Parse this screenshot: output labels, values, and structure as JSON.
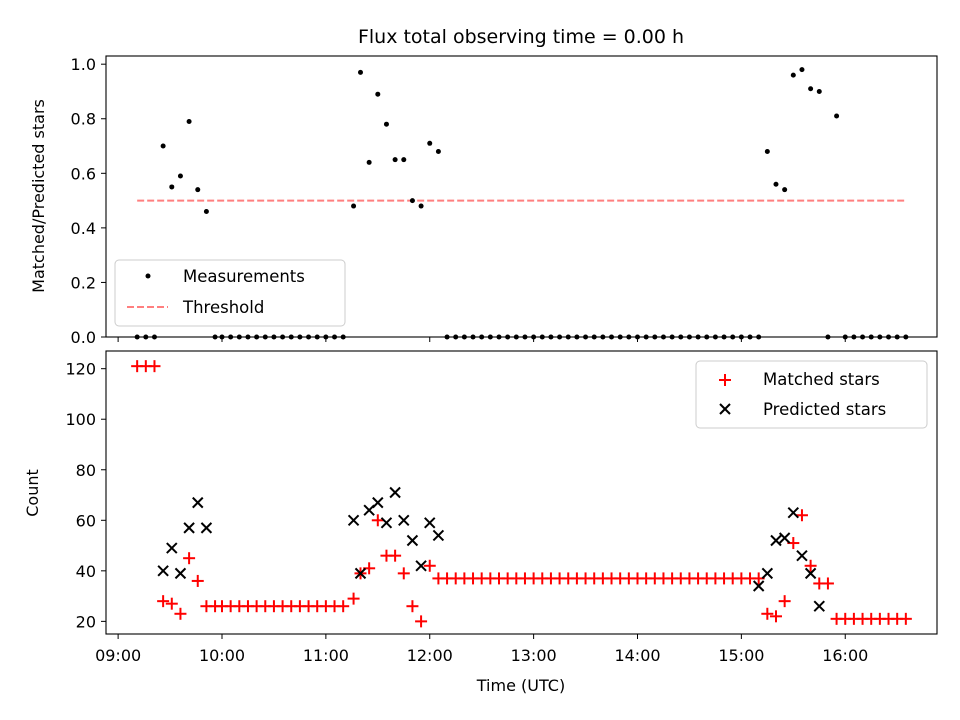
{
  "figure": {
    "title": "Flux total observing time = 0.00 h",
    "xlabel": "Time (UTC)"
  },
  "chart_data": [
    {
      "type": "scatter",
      "title": "Flux total observing time = 0.00 h",
      "xlabel": "",
      "ylabel": "Matched/Predicted stars",
      "ylim": [
        0,
        1.03
      ],
      "yticks": [
        "0.0",
        "0.2",
        "0.4",
        "0.6",
        "0.8",
        "1.0"
      ],
      "ytick_values": [
        0,
        0.2,
        0.4,
        0.6,
        0.8,
        1.0
      ],
      "xlim": [
        "08:53",
        "16:53"
      ],
      "legend_position": "lower-left",
      "series": [
        {
          "name": "Measurements",
          "marker": "dot",
          "color": "#000000",
          "x": [
            "09:11",
            "09:16",
            "09:21",
            "09:26",
            "09:31",
            "09:36",
            "09:41",
            "09:46",
            "09:51",
            "09:56",
            "10:00",
            "10:05",
            "10:10",
            "10:15",
            "10:20",
            "10:25",
            "10:30",
            "10:35",
            "10:40",
            "10:45",
            "10:50",
            "10:55",
            "11:00",
            "11:05",
            "11:10",
            "11:16",
            "11:20",
            "11:25",
            "11:30",
            "11:35",
            "11:40",
            "11:45",
            "11:50",
            "11:55",
            "12:00",
            "12:05",
            "12:10",
            "12:15",
            "12:20",
            "12:25",
            "12:30",
            "12:35",
            "12:40",
            "12:45",
            "12:50",
            "12:55",
            "13:00",
            "13:05",
            "13:10",
            "13:15",
            "13:20",
            "13:25",
            "13:30",
            "13:35",
            "13:40",
            "13:45",
            "13:50",
            "13:55",
            "14:00",
            "14:05",
            "14:10",
            "14:15",
            "14:20",
            "14:25",
            "14:30",
            "14:35",
            "14:40",
            "14:45",
            "14:50",
            "14:55",
            "15:00",
            "15:05",
            "15:10",
            "15:15",
            "15:20",
            "15:25",
            "15:30",
            "15:35",
            "15:40",
            "15:45",
            "15:50",
            "15:55",
            "16:00",
            "16:05",
            "16:10",
            "16:15",
            "16:20",
            "16:25",
            "16:30",
            "16:35"
          ],
          "y": [
            0,
            0,
            0,
            0.7,
            0.55,
            0.59,
            0.79,
            0.54,
            0.46,
            0,
            0,
            0,
            0,
            0,
            0,
            0,
            0,
            0,
            0,
            0,
            0,
            0,
            0,
            0,
            0,
            0.48,
            0.97,
            0.64,
            0.89,
            0.78,
            0.65,
            0.65,
            0.5,
            0.48,
            0.71,
            0.68,
            0,
            0,
            0,
            0,
            0,
            0,
            0,
            0,
            0,
            0,
            0,
            0,
            0,
            0,
            0,
            0,
            0,
            0,
            0,
            0,
            0,
            0,
            0,
            0,
            0,
            0,
            0,
            0,
            0,
            0,
            0,
            0,
            0,
            0,
            0,
            0,
            0,
            0.68,
            0.56,
            0.54,
            0.96,
            0.98,
            0.91,
            0.9,
            0,
            0.81,
            0,
            0,
            0,
            0,
            0,
            0,
            0,
            0
          ]
        },
        {
          "name": "Threshold",
          "style": "dashed",
          "color": "#ff7f7f",
          "x": [
            "09:11",
            "16:35"
          ],
          "y": [
            0.5,
            0.5
          ]
        }
      ]
    },
    {
      "type": "scatter",
      "xlabel": "Time (UTC)",
      "ylabel": "Count",
      "ylim": [
        15,
        127
      ],
      "yticks": [
        "20",
        "40",
        "60",
        "80",
        "100",
        "120"
      ],
      "ytick_values": [
        20,
        40,
        60,
        80,
        100,
        120
      ],
      "xlim": [
        "08:53",
        "16:53"
      ],
      "xticks": [
        "09:00",
        "10:00",
        "11:00",
        "12:00",
        "13:00",
        "14:00",
        "15:00",
        "16:00"
      ],
      "legend_position": "upper-right",
      "series": [
        {
          "name": "Matched stars",
          "marker": "plus",
          "color": "#ff0000",
          "x": [
            "09:11",
            "09:16",
            "09:21",
            "09:26",
            "09:31",
            "09:36",
            "09:41",
            "09:46",
            "09:51",
            "09:56",
            "10:00",
            "10:05",
            "10:10",
            "10:15",
            "10:20",
            "10:25",
            "10:30",
            "10:35",
            "10:40",
            "10:45",
            "10:50",
            "10:55",
            "11:00",
            "11:05",
            "11:10",
            "11:16",
            "11:20",
            "11:25",
            "11:30",
            "11:35",
            "11:40",
            "11:45",
            "11:50",
            "11:55",
            "12:00",
            "12:05",
            "12:10",
            "12:15",
            "12:20",
            "12:25",
            "12:30",
            "12:35",
            "12:40",
            "12:45",
            "12:50",
            "12:55",
            "13:00",
            "13:05",
            "13:10",
            "13:15",
            "13:20",
            "13:25",
            "13:30",
            "13:35",
            "13:40",
            "13:45",
            "13:50",
            "13:55",
            "14:00",
            "14:05",
            "14:10",
            "14:15",
            "14:20",
            "14:25",
            "14:30",
            "14:35",
            "14:40",
            "14:45",
            "14:50",
            "14:55",
            "15:00",
            "15:05",
            "15:10",
            "15:15",
            "15:20",
            "15:25",
            "15:30",
            "15:35",
            "15:40",
            "15:45",
            "15:50",
            "15:55",
            "16:00",
            "16:05",
            "16:10",
            "16:15",
            "16:20",
            "16:25",
            "16:30",
            "16:35"
          ],
          "y": [
            121,
            121,
            121,
            28,
            27,
            23,
            45,
            36,
            26,
            26,
            26,
            26,
            26,
            26,
            26,
            26,
            26,
            26,
            26,
            26,
            26,
            26,
            26,
            26,
            26,
            29,
            39,
            41,
            60,
            46,
            46,
            39,
            26,
            20,
            42,
            37,
            37,
            37,
            37,
            37,
            37,
            37,
            37,
            37,
            37,
            37,
            37,
            37,
            37,
            37,
            37,
            37,
            37,
            37,
            37,
            37,
            37,
            37,
            37,
            37,
            37,
            37,
            37,
            37,
            37,
            37,
            37,
            37,
            37,
            37,
            37,
            37,
            37,
            23,
            22,
            28,
            51,
            62,
            42,
            35,
            35,
            21,
            21,
            21,
            21,
            21,
            21,
            21,
            21,
            21
          ]
        },
        {
          "name": "Predicted stars",
          "marker": "x",
          "color": "#000000",
          "x": [
            "09:26",
            "09:31",
            "09:36",
            "09:41",
            "09:46",
            "09:51",
            "11:16",
            "11:20",
            "11:25",
            "11:30",
            "11:35",
            "11:40",
            "11:45",
            "11:50",
            "11:55",
            "12:00",
            "12:05",
            "15:10",
            "15:15",
            "15:20",
            "15:25",
            "15:30",
            "15:35",
            "15:40",
            "15:45"
          ],
          "y": [
            40,
            49,
            39,
            57,
            67,
            57,
            60,
            39,
            64,
            67,
            59,
            71,
            60,
            52,
            42,
            59,
            54,
            34,
            39,
            52,
            53,
            63,
            46,
            39,
            26
          ]
        }
      ]
    }
  ]
}
